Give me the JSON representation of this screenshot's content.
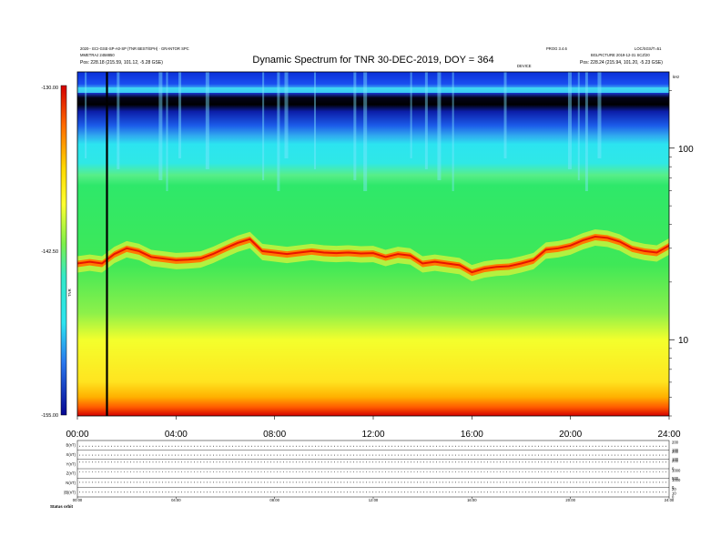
{
  "header": {
    "title": "Dynamic Spectrum for TNR 30-DEC-2019, DOY = 364",
    "left_line1": "2020-· ECI-GSE-SP-A0-SP (TNR BEST/EPH) · GRANTOR SPC",
    "left_line2": "MMETRAJ 2458850",
    "left_line3": "Pos:   228.18 (215.59, 101.12, -5.28 GSE)",
    "right_top1": "PROG 3.4.6",
    "right_top2": "LOC/SGS/T=51",
    "right_line2": "BGLPICTURE 2019-12-31 SCZ/20",
    "right_line3": "Pos:   228.24 (215.94, 101.20, -5.23 GSE)",
    "center_label": "DEVICE",
    "corner_label": "kHz",
    "v_mark": "V"
  },
  "chart_data": [
    {
      "type": "heatmap",
      "title": "Dynamic Spectrum for TNR 30-DEC-2019, DOY = 364",
      "x_ticks": [
        "00:00",
        "04:00",
        "08:00",
        "12:00",
        "16:00",
        "20:00",
        "24:00"
      ],
      "x_range_hours": [
        0,
        24
      ],
      "y_scale": "log",
      "y_range_khz": [
        4,
        250
      ],
      "y_ticks": [
        "100",
        "10"
      ],
      "y_tick_values": [
        100,
        10
      ],
      "colorbar": {
        "ticks": [
          "-130.00",
          "-142.50",
          "-155.00"
        ],
        "tick_values": [
          -130.0,
          -142.5,
          -155.0
        ],
        "label": "TNR",
        "colors": [
          "#d40000",
          "#ff6a00",
          "#ffd800",
          "#ffff30",
          "#9ef24a",
          "#2ee86a",
          "#33e9c8",
          "#2ce4f0",
          "#3fb8f2",
          "#2a78ee",
          "#1238d8",
          "#060692"
        ]
      },
      "plasma_line_khz": [
        [
          0.0,
          25
        ],
        [
          0.5,
          25.5
        ],
        [
          1.0,
          25
        ],
        [
          1.5,
          28
        ],
        [
          2.0,
          30
        ],
        [
          2.5,
          29
        ],
        [
          3.0,
          27
        ],
        [
          3.5,
          26.5
        ],
        [
          4.0,
          26
        ],
        [
          4.5,
          26.2
        ],
        [
          5.0,
          26.5
        ],
        [
          5.5,
          28
        ],
        [
          6.0,
          30
        ],
        [
          6.5,
          32
        ],
        [
          7.0,
          33.5
        ],
        [
          7.5,
          29
        ],
        [
          8.0,
          28.5
        ],
        [
          8.5,
          28
        ],
        [
          9.0,
          28.5
        ],
        [
          9.5,
          29
        ],
        [
          10.0,
          28.5
        ],
        [
          10.5,
          28.3
        ],
        [
          11.0,
          28.5
        ],
        [
          11.5,
          28.2
        ],
        [
          12.0,
          28.3
        ],
        [
          12.5,
          27
        ],
        [
          13.0,
          28
        ],
        [
          13.5,
          27.5
        ],
        [
          14.0,
          25
        ],
        [
          14.5,
          25.5
        ],
        [
          15.0,
          25
        ],
        [
          15.5,
          24.5
        ],
        [
          16.0,
          22.5
        ],
        [
          16.5,
          23.5
        ],
        [
          17.0,
          24
        ],
        [
          17.5,
          24.2
        ],
        [
          18.0,
          25
        ],
        [
          18.5,
          26
        ],
        [
          19.0,
          29.5
        ],
        [
          19.5,
          30
        ],
        [
          20.0,
          31
        ],
        [
          20.5,
          33
        ],
        [
          21.0,
          34.5
        ],
        [
          21.5,
          34
        ],
        [
          22.0,
          32.5
        ],
        [
          22.5,
          30
        ],
        [
          23.0,
          29
        ],
        [
          23.5,
          28.5
        ],
        [
          24.0,
          31
        ]
      ],
      "marker_line_hour": 1.2
    },
    {
      "type": "line",
      "x_ticks": [
        "00:00",
        "04:00",
        "08:00",
        "12:00",
        "16:00",
        "20:00",
        "24:00"
      ],
      "series": [
        {
          "name": "B(nT)",
          "right_ticks": [
            "200",
            "100"
          ]
        },
        {
          "name": "X(nT)",
          "right_ticks": [
            "200",
            "100"
          ]
        },
        {
          "name": "Y(nT)",
          "right_ticks": [
            "200",
            "0"
          ]
        },
        {
          "name": "Z(nT)",
          "right_ticks": [
            "1000",
            "500"
          ]
        },
        {
          "name": "N(nT)",
          "right_ticks": [
            "1000",
            "0"
          ]
        },
        {
          "name": "|B|(nT)",
          "right_ticks": [
            "20",
            "10",
            "0"
          ]
        }
      ],
      "footer_label": "Status   orbit"
    }
  ]
}
